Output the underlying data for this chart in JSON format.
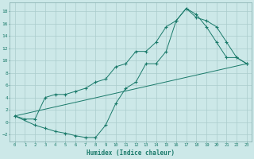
{
  "xlabel": "Humidex (Indice chaleur)",
  "bg_color": "#cce8e8",
  "grid_color": "#aacccc",
  "line_color": "#1a7a6a",
  "xlim": [
    -0.5,
    23.5
  ],
  "ylim": [
    -3.2,
    19.5
  ],
  "xticks": [
    0,
    1,
    2,
    3,
    4,
    5,
    6,
    7,
    8,
    9,
    10,
    11,
    12,
    13,
    14,
    15,
    16,
    17,
    18,
    19,
    20,
    21,
    22,
    23
  ],
  "yticks": [
    -2,
    0,
    2,
    4,
    6,
    8,
    10,
    12,
    14,
    16,
    18
  ],
  "line1_x": [
    0,
    1,
    2,
    3,
    4,
    5,
    6,
    7,
    8,
    9,
    10,
    11,
    12,
    13,
    14,
    15,
    16,
    17,
    18,
    19,
    20,
    21,
    22,
    23
  ],
  "line1_y": [
    1.0,
    0.5,
    0.5,
    4.0,
    4.5,
    4.5,
    5.0,
    5.5,
    6.5,
    7.0,
    9.0,
    9.5,
    11.5,
    11.5,
    13.0,
    15.5,
    16.5,
    18.5,
    17.5,
    15.5,
    13.0,
    10.5,
    10.5,
    9.5
  ],
  "line2_x": [
    0,
    2,
    3,
    4,
    5,
    6,
    7,
    8,
    9,
    10,
    11,
    12,
    13,
    14,
    15,
    16,
    17,
    18,
    19,
    20,
    21,
    22,
    23
  ],
  "line2_y": [
    1.0,
    -0.5,
    -1.0,
    -1.5,
    -1.8,
    -2.2,
    -2.5,
    -2.5,
    -0.5,
    3.0,
    5.5,
    6.5,
    9.5,
    9.5,
    11.5,
    16.5,
    18.5,
    17.0,
    16.5,
    15.5,
    13.0,
    10.5,
    9.5
  ],
  "line3_x": [
    0,
    23
  ],
  "line3_y": [
    1.0,
    9.5
  ]
}
